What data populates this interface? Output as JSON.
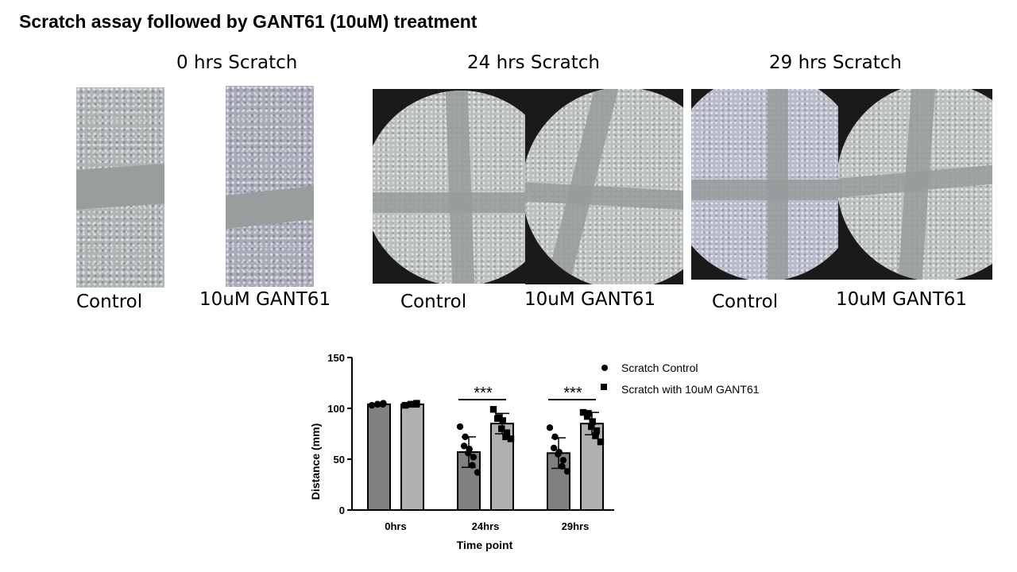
{
  "title": "Scratch assay followed by GANT61 (10uM) treatment",
  "panels": [
    {
      "heading": "0 hrs Scratch",
      "labels": [
        "Control",
        "10uM GANT61"
      ]
    },
    {
      "heading": "24 hrs Scratch",
      "labels": [
        "Control",
        "10uM GANT61"
      ]
    },
    {
      "heading": "29 hrs Scratch",
      "labels": [
        "Control",
        "10uM GANT61"
      ]
    }
  ],
  "chart_data": {
    "type": "bar",
    "title": "",
    "xlabel": "Time point",
    "ylabel": "Distance (mm)",
    "ylim": [
      0,
      150
    ],
    "yticks": [
      0,
      50,
      100,
      150
    ],
    "categories": [
      "0hrs",
      "24hrs",
      "29hrs"
    ],
    "legend_position": "top-right",
    "series": [
      {
        "name": "Scratch Control",
        "marker": "circle",
        "color": "#808080",
        "values": [
          104,
          57,
          56
        ],
        "sd": [
          1,
          15,
          15
        ],
        "points": [
          [
            103,
            104,
            104,
            105,
            104
          ],
          [
            82,
            72,
            63,
            60,
            56,
            52,
            44,
            37
          ],
          [
            81,
            72,
            61,
            57,
            55,
            49,
            43,
            38
          ]
        ]
      },
      {
        "name": "Scratch with 10uM GANT61",
        "marker": "square",
        "color": "#b0b0b0",
        "values": [
          104,
          85,
          85
        ],
        "sd": [
          1,
          10,
          11
        ],
        "points": [
          [
            103,
            104,
            104,
            105,
            104
          ],
          [
            99,
            91,
            90,
            88,
            80,
            76,
            72,
            70
          ],
          [
            96,
            95,
            92,
            87,
            82,
            78,
            73,
            67
          ]
        ]
      }
    ],
    "annotations": [
      {
        "category": "24hrs",
        "text": "***"
      },
      {
        "category": "29hrs",
        "text": "***"
      }
    ]
  }
}
